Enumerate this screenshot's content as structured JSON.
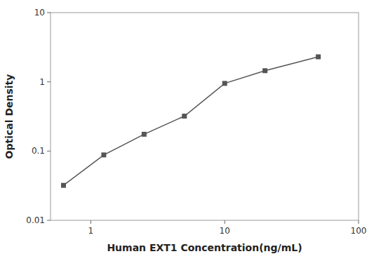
{
  "chart_data": {
    "type": "line",
    "xlabel": "Human EXT1 Concentration(ng/mL)",
    "ylabel": "Optical Density",
    "x": [
      0.625,
      1.25,
      2.5,
      5,
      10,
      20,
      50
    ],
    "values": [
      0.032,
      0.088,
      0.175,
      0.32,
      0.95,
      1.45,
      2.3
    ],
    "color": "#555555",
    "marker": "square",
    "log": true,
    "grid": false,
    "xlim": [
      0.5,
      100
    ],
    "ylim": [
      0.01,
      10
    ],
    "xticks": [
      1,
      10,
      100
    ],
    "yticks": [
      0.01,
      0.1,
      1,
      10
    ]
  }
}
